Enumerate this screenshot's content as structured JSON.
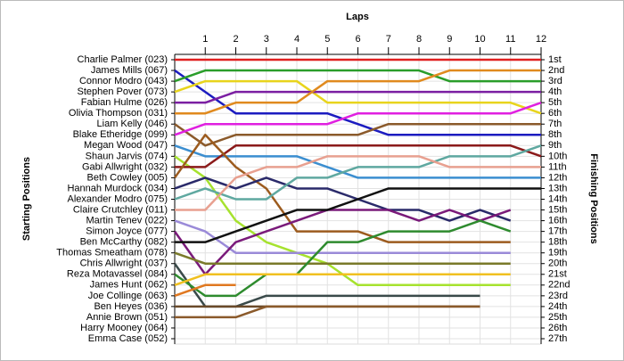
{
  "chart_data": {
    "type": "line",
    "title": "Laps",
    "y_label": "Starting Positions",
    "y2_label": "Finishing Positions",
    "x": [
      0,
      1,
      2,
      3,
      4,
      5,
      6,
      7,
      8,
      9,
      10,
      11,
      12
    ],
    "xlim": [
      0,
      12
    ],
    "xticks": [
      1,
      2,
      3,
      4,
      5,
      6,
      7,
      8,
      9,
      10,
      11,
      12
    ],
    "ylim": [
      1,
      27
    ],
    "yticks": [
      1,
      2,
      3,
      4,
      5,
      6,
      7,
      8,
      9,
      10,
      11,
      12,
      13,
      14,
      15,
      16,
      17,
      18,
      19,
      20,
      21,
      22,
      23,
      24,
      25,
      26,
      27
    ],
    "finishing_labels": [
      "1st",
      "2nd",
      "3rd",
      "4th",
      "5th",
      "6th",
      "7th",
      "8th",
      "9th",
      "10th",
      "11th",
      "12th",
      "13th",
      "14th",
      "15th",
      "16th",
      "17th",
      "18th",
      "19th",
      "20th",
      "21st",
      "22nd",
      "23rd",
      "24th",
      "25th",
      "26th",
      "27th"
    ],
    "grid": true,
    "series": [
      {
        "name": "Charlie Palmer (023)",
        "color": "#e02020",
        "values": [
          1,
          1,
          1,
          1,
          1,
          1,
          1,
          1,
          1,
          1,
          1,
          1,
          1
        ]
      },
      {
        "name": "James Mills (067)",
        "color": "#1c1cc0",
        "values": [
          2,
          4,
          6,
          6,
          6,
          6,
          7,
          8,
          8,
          8,
          8,
          8,
          8
        ]
      },
      {
        "name": "Connor Modro (043)",
        "color": "#2a9d2a",
        "values": [
          3,
          2,
          2,
          2,
          2,
          2,
          2,
          2,
          2,
          3,
          3,
          3,
          3
        ]
      },
      {
        "name": "Stephen Pover (073)",
        "color": "#e8d41c",
        "values": [
          4,
          3,
          3,
          3,
          3,
          5,
          5,
          5,
          5,
          5,
          5,
          5,
          6
        ]
      },
      {
        "name": "Fabian Hulme (026)",
        "color": "#7b1fa2",
        "values": [
          5,
          5,
          4,
          4,
          4,
          4,
          4,
          4,
          4,
          4,
          4,
          4,
          4
        ]
      },
      {
        "name": "Olivia Thompson (031)",
        "color": "#e08a1e",
        "values": [
          6,
          6,
          5,
          5,
          5,
          3,
          3,
          3,
          3,
          2,
          2,
          2,
          2
        ]
      },
      {
        "name": "Liam Kelly (046)",
        "color": "#8b5a2b",
        "values": [
          7,
          9,
          8,
          8,
          8,
          8,
          8,
          7,
          7,
          7,
          7,
          7,
          7
        ]
      },
      {
        "name": "Blake Etheridge (099)",
        "color": "#e020e0",
        "values": [
          8,
          7,
          7,
          7,
          7,
          7,
          6,
          6,
          6,
          6,
          6,
          6,
          5
        ]
      },
      {
        "name": "Megan Wood (047)",
        "color": "#3b8ed0",
        "values": [
          9,
          10,
          10,
          10,
          10,
          11,
          12,
          12,
          12,
          12,
          12,
          12,
          12
        ]
      },
      {
        "name": "Shaun Jarvis (074)",
        "color": "#a6e22e",
        "values": [
          10,
          12,
          16,
          18,
          19,
          20,
          22,
          22,
          22,
          22,
          22,
          22,
          null
        ]
      },
      {
        "name": "Gabi Allwright (032)",
        "color": "#8b1a1a",
        "values": [
          11,
          11,
          9,
          9,
          9,
          9,
          9,
          9,
          9,
          9,
          9,
          9,
          10
        ]
      },
      {
        "name": "Beth Cowley (005)",
        "color": "#9c5b1e",
        "values": [
          12,
          8,
          11,
          13,
          17,
          17,
          17,
          18,
          18,
          18,
          18,
          18,
          null
        ]
      },
      {
        "name": "Hannah Murdock (034)",
        "color": "#2a2a6a",
        "values": [
          13,
          12,
          13,
          12,
          13,
          13,
          14,
          15,
          15,
          16,
          15,
          16,
          null
        ]
      },
      {
        "name": "Alexander Modro (075)",
        "color": "#5fa8a0",
        "values": [
          14,
          13,
          14,
          14,
          12,
          12,
          11,
          11,
          11,
          10,
          10,
          10,
          9
        ]
      },
      {
        "name": "Claire Crutchley (011)",
        "color": "#e8a090",
        "values": [
          15,
          15,
          12,
          11,
          11,
          10,
          10,
          10,
          10,
          11,
          11,
          11,
          11
        ]
      },
      {
        "name": "Martin Tenev (022)",
        "color": "#9a8ad8",
        "values": [
          16,
          17,
          19,
          19,
          19,
          19,
          19,
          19,
          19,
          19,
          19,
          19,
          null
        ]
      },
      {
        "name": "Simon Joyce (077)",
        "color": "#7a1a7a",
        "values": [
          17,
          21,
          18,
          17,
          16,
          15,
          15,
          15,
          16,
          15,
          16,
          15,
          null
        ]
      },
      {
        "name": "Ben McCarthy (082)",
        "color": "#111111",
        "values": [
          18,
          18,
          17,
          16,
          15,
          15,
          14,
          13,
          13,
          13,
          13,
          13,
          13
        ]
      },
      {
        "name": "Thomas Smeatham (078)",
        "color": "#7a7a2a",
        "values": [
          19,
          20,
          20,
          20,
          20,
          20,
          20,
          20,
          20,
          20,
          20,
          20,
          null
        ]
      },
      {
        "name": "Chris Allwright (037)",
        "color": "#3a4a4a",
        "values": [
          20,
          24,
          24,
          23,
          23,
          23,
          23,
          23,
          23,
          23,
          23,
          null,
          null
        ]
      },
      {
        "name": "Reza Motavassel (084)",
        "color": "#2e8b2e",
        "values": [
          21,
          23,
          23,
          21,
          21,
          18,
          18,
          17,
          17,
          17,
          16,
          17,
          null
        ]
      },
      {
        "name": "James Hunt (062)",
        "color": "#f0c020",
        "values": [
          22,
          21,
          21,
          21,
          21,
          21,
          21,
          21,
          21,
          21,
          21,
          21,
          null
        ]
      },
      {
        "name": "Joe Collinge (063)",
        "color": "#e07820",
        "values": [
          23,
          22,
          22,
          null,
          null,
          null,
          null,
          null,
          null,
          null,
          null,
          null,
          null
        ]
      },
      {
        "name": "Ben Heyes (036)",
        "color": "#6a4a2a",
        "values": [
          24,
          24,
          24,
          24,
          24,
          24,
          24,
          24,
          24,
          24,
          24,
          null,
          null
        ]
      },
      {
        "name": "Annie Brown (051)",
        "color": "#8b5a2b",
        "values": [
          25,
          25,
          25,
          24,
          24,
          24,
          24,
          24,
          24,
          24,
          24,
          null,
          null
        ]
      },
      {
        "name": "Harry Mooney (064)",
        "color": "#888888",
        "values": [
          null,
          null,
          null,
          null,
          null,
          null,
          null,
          null,
          null,
          null,
          null,
          null,
          null
        ]
      },
      {
        "name": "Emma Case (052)",
        "color": "#888888",
        "values": [
          null,
          null,
          null,
          null,
          null,
          null,
          null,
          null,
          null,
          null,
          null,
          null,
          null
        ]
      }
    ]
  }
}
